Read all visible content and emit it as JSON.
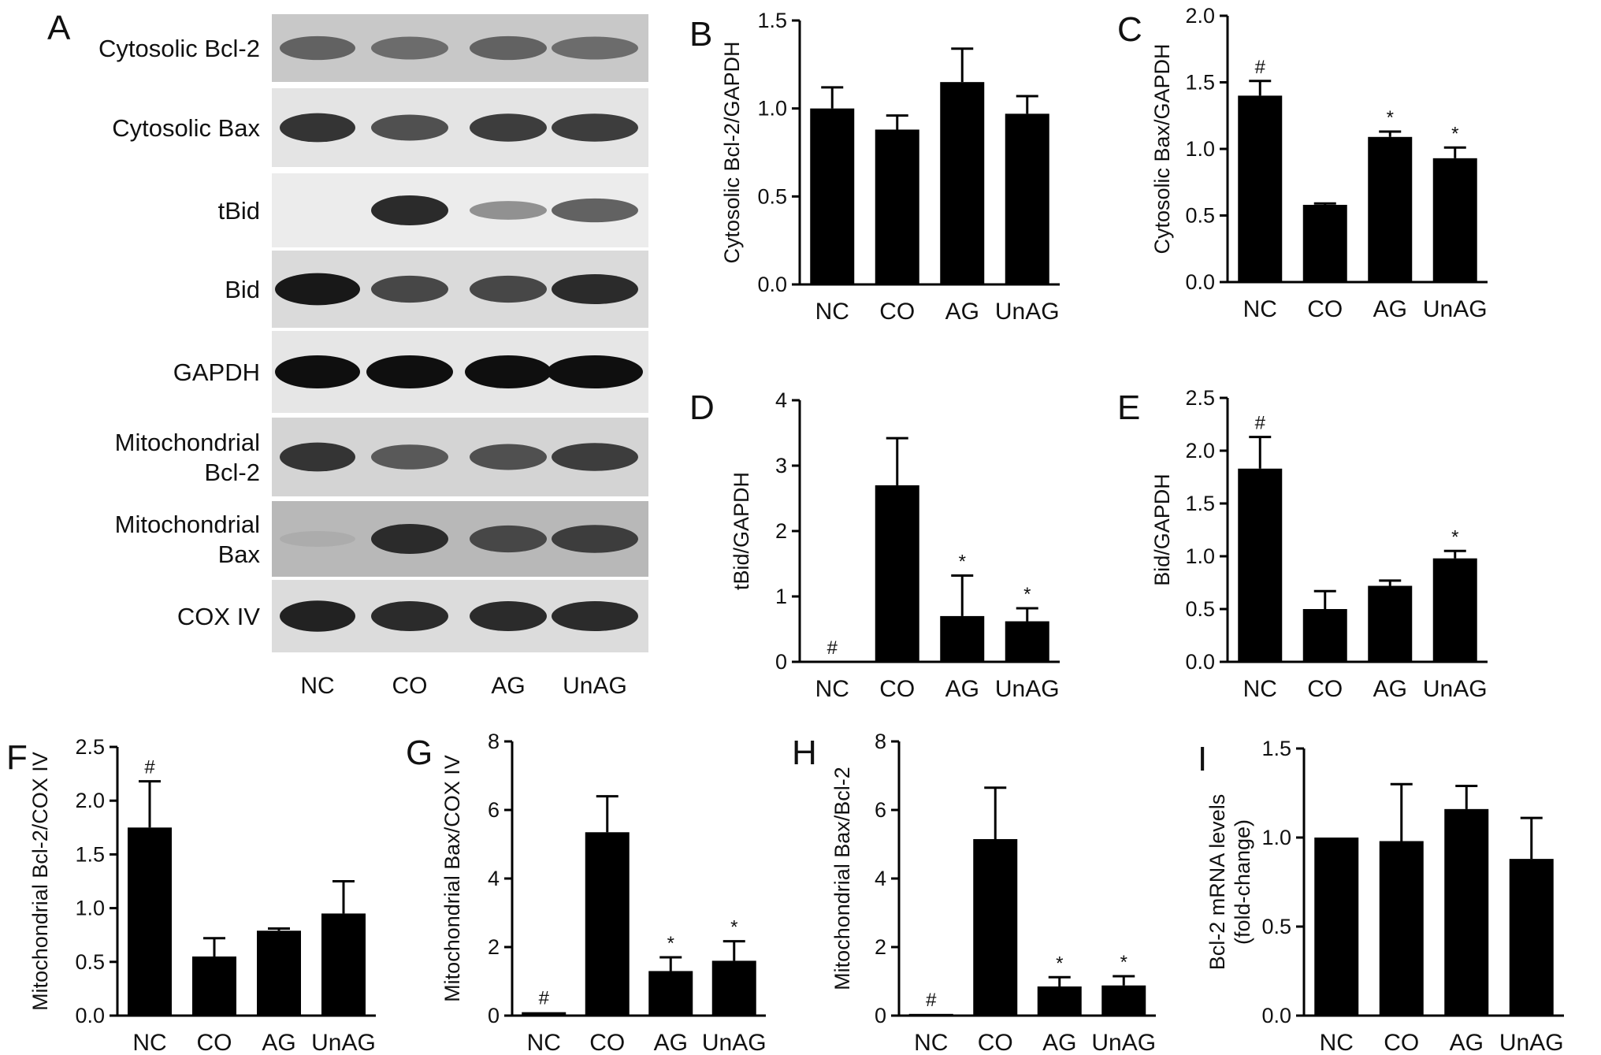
{
  "figure": {
    "panel_labels": [
      "A",
      "B",
      "C",
      "D",
      "E",
      "F",
      "G",
      "H",
      "I"
    ]
  },
  "blot": {
    "panel": "A",
    "rows": [
      {
        "label": [
          "Cytosolic Bcl-2"
        ],
        "intensities": [
          0.55,
          0.5,
          0.55,
          0.5
        ],
        "tone": "#c8c8c8"
      },
      {
        "label": [
          "Cytosolic Bax"
        ],
        "intensities": [
          0.8,
          0.65,
          0.75,
          0.75
        ],
        "tone": "#e4e4e4"
      },
      {
        "label": [
          "tBid"
        ],
        "intensities": [
          0.0,
          0.85,
          0.3,
          0.55
        ],
        "tone": "#ececec"
      },
      {
        "label": [
          "Bid"
        ],
        "intensities": [
          0.95,
          0.7,
          0.7,
          0.85
        ],
        "tone": "#dadada"
      },
      {
        "label": [
          "GAPDH"
        ],
        "intensities": [
          1.0,
          1.0,
          1.0,
          1.0
        ],
        "tone": "#e6e6e6"
      },
      {
        "label": [
          "Mitochondrial",
          "Bcl-2"
        ],
        "intensities": [
          0.8,
          0.6,
          0.65,
          0.75
        ],
        "tone": "#d4d4d4"
      },
      {
        "label": [
          "Mitochondrial",
          "Bax"
        ],
        "intensities": [
          0.15,
          0.85,
          0.7,
          0.75
        ],
        "tone": "#b8b8b8"
      },
      {
        "label": [
          "COX IV"
        ],
        "intensities": [
          0.9,
          0.85,
          0.85,
          0.85
        ],
        "tone": "#dcdcdc"
      }
    ],
    "lanes": [
      "NC",
      "CO",
      "AG",
      "UnAG"
    ]
  },
  "chart_data": [
    {
      "panel": "B",
      "type": "bar",
      "categories": [
        "NC",
        "CO",
        "AG",
        "UnAG"
      ],
      "values": [
        1.0,
        0.88,
        1.15,
        0.97
      ],
      "errors": [
        0.12,
        0.08,
        0.19,
        0.1
      ],
      "marks": [
        "",
        "",
        "",
        ""
      ],
      "ylabel": [
        "Cytosolic Bcl-2/GAPDH"
      ],
      "ylim": [
        0,
        1.5
      ],
      "yticks": [
        "0.0",
        "0.5",
        "1.0",
        "1.5"
      ]
    },
    {
      "panel": "C",
      "type": "bar",
      "categories": [
        "NC",
        "CO",
        "AG",
        "UnAG"
      ],
      "values": [
        1.4,
        0.58,
        1.09,
        0.93
      ],
      "errors": [
        0.11,
        0.01,
        0.04,
        0.08
      ],
      "marks": [
        "#",
        "",
        "*",
        "*"
      ],
      "ylabel": [
        "Cytosolic Bax/GAPDH"
      ],
      "ylim": [
        0,
        2.0
      ],
      "yticks": [
        "0.0",
        "0.5",
        "1.0",
        "1.5",
        "2.0"
      ]
    },
    {
      "panel": "D",
      "type": "bar",
      "categories": [
        "NC",
        "CO",
        "AG",
        "UnAG"
      ],
      "values": [
        0.0,
        2.7,
        0.7,
        0.62
      ],
      "errors": [
        0.0,
        0.72,
        0.62,
        0.2
      ],
      "marks": [
        "#",
        "",
        "*",
        "*"
      ],
      "ylabel": [
        "tBid/GAPDH"
      ],
      "ylim": [
        0,
        4
      ],
      "yticks": [
        "0",
        "1",
        "2",
        "3",
        "4"
      ]
    },
    {
      "panel": "E",
      "type": "bar",
      "categories": [
        "NC",
        "CO",
        "AG",
        "UnAG"
      ],
      "values": [
        1.83,
        0.5,
        0.72,
        0.98
      ],
      "errors": [
        0.3,
        0.17,
        0.05,
        0.07
      ],
      "marks": [
        "#",
        "",
        "",
        "*"
      ],
      "ylabel": [
        "Bid/GAPDH"
      ],
      "ylim": [
        0,
        2.5
      ],
      "yticks": [
        "0.0",
        "0.5",
        "1.0",
        "1.5",
        "2.0",
        "2.5"
      ]
    },
    {
      "panel": "F",
      "type": "bar",
      "categories": [
        "NC",
        "CO",
        "AG",
        "UnAG"
      ],
      "values": [
        1.75,
        0.55,
        0.79,
        0.95
      ],
      "errors": [
        0.43,
        0.17,
        0.02,
        0.3
      ],
      "marks": [
        "#",
        "",
        "",
        ""
      ],
      "ylabel": [
        "Mitochondrial Bcl-2/COX IV"
      ],
      "ylim": [
        0,
        2.5
      ],
      "yticks": [
        "0.0",
        "0.5",
        "1.0",
        "1.5",
        "2.0",
        "2.5"
      ]
    },
    {
      "panel": "G",
      "type": "bar",
      "categories": [
        "NC",
        "CO",
        "AG",
        "UnAG"
      ],
      "values": [
        0.1,
        5.35,
        1.3,
        1.6
      ],
      "errors": [
        0.0,
        1.05,
        0.4,
        0.57
      ],
      "marks": [
        "#",
        "",
        "*",
        "*"
      ],
      "ylabel": [
        "Mitochondrial Bax/COX IV"
      ],
      "ylim": [
        0,
        8
      ],
      "yticks": [
        "0",
        "2",
        "4",
        "6",
        "8"
      ]
    },
    {
      "panel": "H",
      "type": "bar",
      "categories": [
        "NC",
        "CO",
        "AG",
        "UnAG"
      ],
      "values": [
        0.05,
        5.15,
        0.85,
        0.88
      ],
      "errors": [
        0.0,
        1.5,
        0.27,
        0.27
      ],
      "marks": [
        "#",
        "",
        "*",
        "*"
      ],
      "ylabel": [
        "Mitochondrial Bax/Bcl-2"
      ],
      "ylim": [
        0,
        8
      ],
      "yticks": [
        "0",
        "2",
        "4",
        "6",
        "8"
      ]
    },
    {
      "panel": "I",
      "type": "bar",
      "categories": [
        "NC",
        "CO",
        "AG",
        "UnAG"
      ],
      "values": [
        1.0,
        0.98,
        1.16,
        0.88
      ],
      "errors": [
        0.0,
        0.32,
        0.13,
        0.23
      ],
      "marks": [
        "",
        "",
        "",
        ""
      ],
      "ylabel": [
        "Bcl-2 mRNA levels",
        "(fold-change)"
      ],
      "ylim": [
        0,
        1.5
      ],
      "yticks": [
        "0.0",
        "0.5",
        "1.0",
        "1.5"
      ]
    }
  ]
}
